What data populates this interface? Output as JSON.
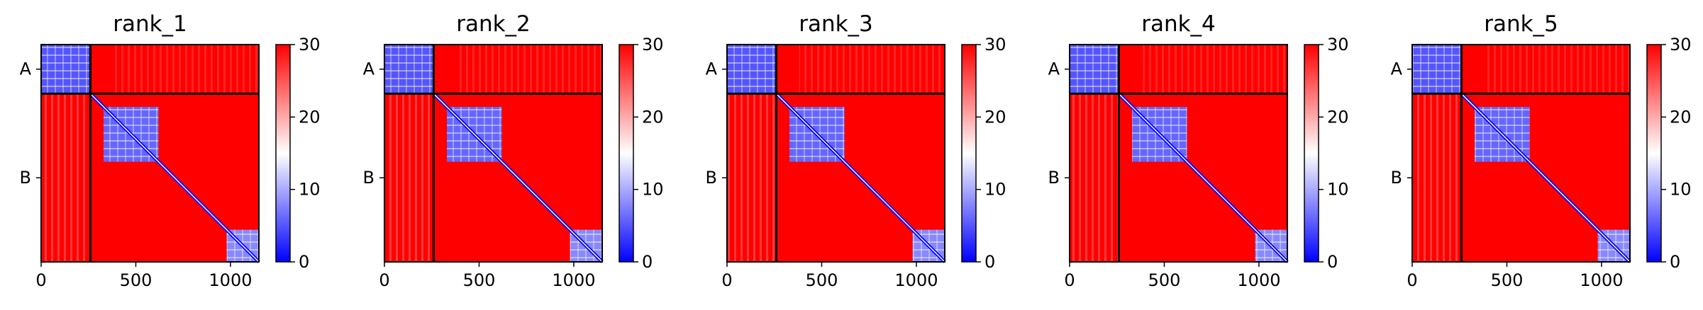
{
  "colors": {
    "low": "#0000ff",
    "mid": "#ffffff",
    "high": "#ff0000",
    "border": "#000000"
  },
  "chart_data": {
    "type": "heatmap",
    "colormap": "bwr",
    "chains": [
      {
        "label": "A",
        "start": 0,
        "end": 260
      },
      {
        "label": "B",
        "start": 260,
        "end": 1150
      }
    ],
    "matrix_size": 1150,
    "xticks": [
      0,
      500,
      1000
    ],
    "colorbar": {
      "min": 0,
      "max": 30,
      "ticks": [
        0,
        10,
        20,
        30
      ]
    },
    "blocks": [
      {
        "region": "chain A self",
        "x": [
          0,
          260
        ],
        "y": [
          0,
          260
        ],
        "value": 5
      },
      {
        "region": "chain B domain 1",
        "x": [
          330,
          620
        ],
        "y": [
          330,
          620
        ],
        "value": 6
      },
      {
        "region": "chain B domain 2",
        "x": [
          980,
          1150
        ],
        "y": [
          980,
          1150
        ],
        "value": 8
      }
    ],
    "background_value": 30,
    "panels": [
      {
        "title": "rank_1"
      },
      {
        "title": "rank_2"
      },
      {
        "title": "rank_3"
      },
      {
        "title": "rank_4"
      },
      {
        "title": "rank_5"
      }
    ]
  }
}
